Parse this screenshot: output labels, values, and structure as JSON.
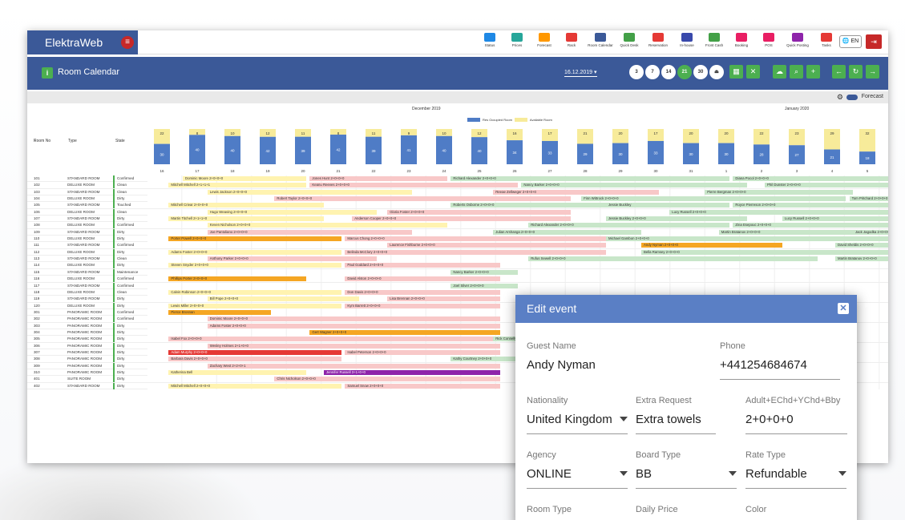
{
  "app": {
    "brand": "ElektraWeb",
    "menu_icon": "menu-icon"
  },
  "nav": [
    {
      "label": "Status",
      "color": "#1e88e5"
    },
    {
      "label": "Prices",
      "color": "#26a69a"
    },
    {
      "label": "Forecast",
      "color": "#ff9800"
    },
    {
      "label": "Rack",
      "color": "#e53935"
    },
    {
      "label": "Room Calendar",
      "color": "#3b5998"
    },
    {
      "label": "Quick Desk",
      "color": "#43a047"
    },
    {
      "label": "Reservation",
      "color": "#e53935"
    },
    {
      "label": "In-house",
      "color": "#3949ab"
    },
    {
      "label": "Front Cash",
      "color": "#43a047"
    },
    {
      "label": "Booking",
      "color": "#e91e63"
    },
    {
      "label": "POS",
      "color": "#e91e63"
    },
    {
      "label": "Quick Posting",
      "color": "#8e24aa"
    },
    {
      "label": "Tasks",
      "color": "#e53935"
    }
  ],
  "lang": "EN",
  "title": "Room Calendar",
  "date": "16.12.2019",
  "days": [
    "3",
    "7",
    "14",
    "21",
    "30"
  ],
  "forecast": "Forecast",
  "months": {
    "dec": "December 2019",
    "jan": "January 2020"
  },
  "legend": {
    "occupied": "Res Occupied Room",
    "available": "Available Room",
    "occupied_color": "#4f7cc6",
    "available_color": "#f7eb9a"
  },
  "columns": {
    "no": "Room No",
    "type": "Type",
    "state": "State"
  },
  "forecast_top": [
    "22",
    "8",
    "10",
    "12",
    "11",
    "8",
    "11",
    "9",
    "10",
    "12",
    "16",
    "17",
    "21",
    "20",
    "17",
    "20",
    "20",
    "22",
    "23",
    "29",
    "32"
  ],
  "forecast_bottom": [
    "30",
    "40",
    "40",
    "42",
    "39",
    "42",
    "39",
    "41",
    "40",
    "40",
    "34",
    "33",
    "29",
    "30",
    "33",
    "30",
    "30",
    "28",
    "27",
    "21",
    "18"
  ],
  "dates": [
    "16",
    "17",
    "18",
    "19",
    "20",
    "21",
    "22",
    "23",
    "24",
    "25",
    "26",
    "27",
    "28",
    "29",
    "30",
    "31",
    "1",
    "2",
    "3",
    "4",
    "5"
  ],
  "rows": [
    {
      "no": "101",
      "type": "STANDARD ROOM",
      "state": "Confirmed",
      "bars": [
        [
          "Dominic Moore 2+0+0+0",
          "y",
          1,
          4.5
        ],
        [
          "Jones Hunt 2+0+0+0",
          "p",
          4.6,
          8.5
        ],
        [
          "Richard Alexander 2+0+0+0",
          "g",
          8.6,
          16.5
        ],
        [
          "Diana Pocol 2+0+0+0",
          "g",
          16.6,
          21
        ]
      ]
    },
    {
      "no": "102",
      "type": "DELUXE ROOM",
      "state": "Clean",
      "bars": [
        [
          "Mitchell Mitchell 2+1+1+1",
          "y",
          0.6,
          4.5
        ],
        [
          "Keanu Reeves 2+0+0+0",
          "p",
          4.6,
          10.5
        ],
        [
          "Nancy Barker 2+0+0+0",
          "g",
          10.6,
          17
        ],
        [
          "Phil Dunster 2+0+0+0",
          "g",
          17.5,
          21
        ]
      ]
    },
    {
      "no": "103",
      "type": "STANDARD ROOM",
      "state": "Clean",
      "bars": [
        [
          "Lewis Jackson 2+0+0+0",
          "y",
          1.7,
          7.5
        ],
        [
          "Reeae Zellweger 2+0+0+0",
          "p",
          9.8,
          14.5
        ],
        [
          "Pierre Bergman 2+0+0+0",
          "g",
          15.8,
          20
        ]
      ]
    },
    {
      "no": "104",
      "type": "DELUXE ROOM",
      "state": "Dirty",
      "bars": [
        [
          "Robert Taylor 2+0+0+0",
          "p",
          3.6,
          12
        ],
        [
          "Finn Wittrock 2+0+0+0",
          "g",
          12.3,
          19.8
        ],
        [
          "Tom Pritchard 2+0+0+0",
          "g",
          19.9,
          21
        ]
      ]
    },
    {
      "no": "105",
      "type": "STANDARD ROOM",
      "state": "Touched",
      "bars": [
        [
          "Mitchell Criear 2+0+0+0",
          "y",
          0.6,
          5
        ],
        [
          "Roberts Osborne 2+0+0+0",
          "g",
          8.6,
          13
        ],
        [
          "Jessie Buckley",
          "g",
          13,
          16.5
        ],
        [
          "Royce Pierreson 2+0+0+0",
          "g",
          16.6,
          21
        ]
      ]
    },
    {
      "no": "106",
      "type": "DELUXE ROOM",
      "state": "Clean",
      "bars": [
        [
          "Hugo Weaving 2+0+0+0",
          "y",
          1.7,
          6.5
        ],
        [
          "Gloria Foster 2+0+0+0",
          "p",
          6.8,
          12
        ],
        [
          "Lucy Russell 2+0+0+0",
          "g",
          14.8,
          21
        ]
      ]
    },
    {
      "no": "107",
      "type": "STANDARD ROOM",
      "state": "Dirty",
      "bars": [
        [
          "Martin Titchell 2+1+1+0",
          "y",
          0.6,
          5
        ],
        [
          "Anderson Cooper 2+0+0+0",
          "p",
          5.8,
          12
        ],
        [
          "Jessie Buckley 2+0+0+0",
          "g",
          13,
          17
        ],
        [
          "Lucy Russell 2+0+0+0",
          "g",
          18,
          21
        ]
      ]
    },
    {
      "no": "108",
      "type": "DELUXE ROOM",
      "state": "Confirmed",
      "bars": [
        [
          "Keven Nicholson 2+0+0+0",
          "y",
          1.7,
          8.5
        ],
        [
          "Richard Alexander 2+0+0+0",
          "g",
          10.8,
          16.5
        ],
        [
          "Zina Esepouc 2+0+0+0",
          "g",
          16.6,
          21
        ]
      ]
    },
    {
      "no": "109",
      "type": "STANDARD ROOM",
      "state": "Dirty",
      "bars": [
        [
          "Joe Pantoliano 2+0+0+0",
          "p",
          1.7,
          7.5
        ],
        [
          "Julian Arshanga 2+0+0+0",
          "g",
          9.8,
          14
        ],
        [
          "Martin Bratanov 2+0+0+0",
          "g",
          16.2,
          20
        ],
        [
          "Jack Jagodka 2+0+0+0",
          "g",
          20,
          21
        ]
      ]
    },
    {
      "no": "110",
      "type": "DELUXE ROOM",
      "state": "Dirty",
      "bars": [
        [
          "Porter Powell 2+0+0+0",
          "o",
          0.6,
          5.5
        ],
        [
          "Marcus Chong 2+0+0+0",
          "p",
          5.6,
          13
        ],
        [
          "Michael Gambon 2+0+0+0",
          "g",
          13,
          21
        ]
      ]
    },
    {
      "no": "111",
      "type": "STANDARD ROOM",
      "state": "Confirmed",
      "bars": [
        [
          "Laurence Fishburne 2+0+0+0",
          "p",
          6.8,
          13
        ],
        [
          "Andy Nyman 2+0+0+0",
          "o",
          14,
          18
        ],
        [
          "David Sheldis 2+0+0+0",
          "g",
          19.5,
          21
        ]
      ]
    },
    {
      "no": "112",
      "type": "DELUXE ROOM",
      "state": "Dirty",
      "bars": [
        [
          "Adams Foster 2+0+0+0",
          "y",
          0.6,
          5.5
        ],
        [
          "Belinda McClory 2+0+0+0",
          "p",
          5.6,
          13
        ],
        [
          "Bella Ramsey 2+0+0+0",
          "g",
          14,
          21
        ]
      ]
    },
    {
      "no": "113",
      "type": "STANDARD ROOM",
      "state": "Clean",
      "bars": [
        [
          "Anthony Parker 2+0+0+0",
          "p",
          1.7,
          6.5
        ],
        [
          "Rufus Sewell 2+0+0+0",
          "g",
          10.8,
          19
        ],
        [
          "Martin Bratanov 2+0+0+0",
          "g",
          19.5,
          21
        ]
      ]
    },
    {
      "no": "114",
      "type": "DELUXE ROOM",
      "state": "Dirty",
      "bars": [
        [
          "Steven Snyder 2+0+0+0",
          "y",
          0.6,
          5.5
        ],
        [
          "Paul Goddard 2+0+0+0",
          "p",
          5.6,
          10
        ]
      ]
    },
    {
      "no": "115",
      "type": "STANDARD ROOM",
      "state": "Maintenance",
      "bars": [
        [
          "Nancy Barker 2+0+0+0",
          "g",
          8.6,
          10.5
        ]
      ]
    },
    {
      "no": "116",
      "type": "DELUXE ROOM",
      "state": "Confirmed",
      "bars": [
        [
          "Phillips Porter 2+0+0+0",
          "o",
          0.6,
          4.5
        ],
        [
          "David Alston 2+0+0+0",
          "p",
          5.6,
          10
        ]
      ]
    },
    {
      "no": "117",
      "type": "STANDARD ROOM",
      "state": "Confirmed",
      "bars": [
        [
          "Joel Silver 2+0+0+0",
          "g",
          8.6,
          10.5
        ]
      ]
    },
    {
      "no": "118",
      "type": "DELUXE ROOM",
      "state": "Clean",
      "bars": [
        [
          "Calvin Robinson 2+0+0+0",
          "y",
          0.6,
          5.5
        ],
        [
          "Don Davis 2+0+0+0",
          "p",
          5.6,
          10
        ]
      ]
    },
    {
      "no": "119",
      "type": "STANDARD ROOM",
      "state": "Dirty",
      "bars": [
        [
          "Bill Pope 2+0+0+0",
          "y",
          1.7,
          6
        ],
        [
          "Lisa Brennan 2+0+0+0",
          "p",
          6.8,
          10
        ]
      ]
    },
    {
      "no": "120",
      "type": "DELUXE ROOM",
      "state": "Dirty",
      "bars": [
        [
          "Lewis Miller 2+0+0+0",
          "y",
          0.6,
          5.5
        ],
        [
          "Kym Barrett 2+0+0+0",
          "p",
          5.6,
          10
        ]
      ]
    },
    {
      "no": "301",
      "type": "PANORAMIC ROOM",
      "state": "Confirmed",
      "bars": [
        [
          "Pierce Brosnan",
          "o",
          0.6,
          3.5
        ]
      ]
    },
    {
      "no": "302",
      "type": "PANORAMIC ROOM",
      "state": "Confirmed",
      "bars": [
        [
          "Dominic Moore 2+0+0+0",
          "p",
          1.7,
          10
        ]
      ]
    },
    {
      "no": "303",
      "type": "PANORAMIC ROOM",
      "state": "Dirty",
      "bars": [
        [
          "Adams Foster 2+0+0+0",
          "p",
          1.7,
          10
        ]
      ]
    },
    {
      "no": "304",
      "type": "PANORAMIC ROOM",
      "state": "Dirty",
      "bars": [
        [
          "Gert Wagner 2+0+0+0",
          "o",
          4.6,
          10
        ]
      ]
    },
    {
      "no": "305",
      "type": "PANORAMIC ROOM",
      "state": "Dirty",
      "bars": [
        [
          "Isabel Fox 2+0+0+0",
          "p",
          0.6,
          10
        ],
        [
          "Rick Connelly",
          "g",
          9.8,
          10.5
        ]
      ]
    },
    {
      "no": "306",
      "type": "PANORAMIC ROOM",
      "state": "Dirty",
      "bars": [
        [
          "Wesley Holmes 2+1+0+0",
          "p",
          1.7,
          10
        ]
      ]
    },
    {
      "no": "307",
      "type": "PANORAMIC ROOM",
      "state": "Dirty",
      "bars": [
        [
          "Adam Murphy 2+0+0+0",
          "r",
          0.6,
          5.5
        ],
        [
          "Isabel Peterson 2+0+0+0",
          "p",
          5.6,
          10
        ]
      ]
    },
    {
      "no": "308",
      "type": "PANORAMIC ROOM",
      "state": "Dirty",
      "bars": [
        [
          "Barbara Davis 2+0+0+0",
          "p",
          0.6,
          5.5
        ],
        [
          "Kathy Courtney 2+0+0+0",
          "g",
          8.6,
          10.5
        ]
      ]
    },
    {
      "no": "309",
      "type": "PANORAMIC ROOM",
      "state": "Dirty",
      "bars": [
        [
          "Zachary West 2+2+0+1",
          "p",
          1.7,
          10
        ]
      ]
    },
    {
      "no": "310",
      "type": "PANORAMIC ROOM",
      "state": "Dirty",
      "bars": [
        [
          "Katherina Bell",
          "y",
          0.6,
          4.5
        ],
        [
          "Jennifer Russell 3+1+0+0",
          "u",
          5,
          10
        ]
      ]
    },
    {
      "no": "401",
      "type": "SUITE ROOM",
      "state": "Dirty",
      "bars": [
        [
          "Chris Nicholson 2+0+0+0",
          "p",
          3.6,
          10
        ]
      ]
    },
    {
      "no": "402",
      "type": "STANDARD ROOM",
      "state": "Dirty",
      "bars": [
        [
          "Mitchell Mitchell 2+0+0+0",
          "y",
          0.6,
          5.5
        ],
        [
          "Samuel Snow 2+0+0+0",
          "p",
          5.6,
          10
        ]
      ]
    }
  ],
  "modal": {
    "title": "Edit event",
    "guest_name_label": "Guest Name",
    "guest_name": "Andy Nyman",
    "phone_label": "Phone",
    "phone": "+441254684674",
    "nationality_label": "Nationality",
    "nationality": "United Kingdom",
    "extra_label": "Extra Request",
    "extra": "Extra towels",
    "pax_label": "Adult+EChd+YChd+Bby",
    "pax": "2+0+0+0",
    "agency_label": "Agency",
    "agency": "ONLINE",
    "board_label": "Board Type",
    "board": "BB",
    "rate_label": "Rate Type",
    "rate": "Refundable",
    "room_type_label": "Room Type",
    "daily_price_label": "Daily Price",
    "color_label": "Color"
  }
}
